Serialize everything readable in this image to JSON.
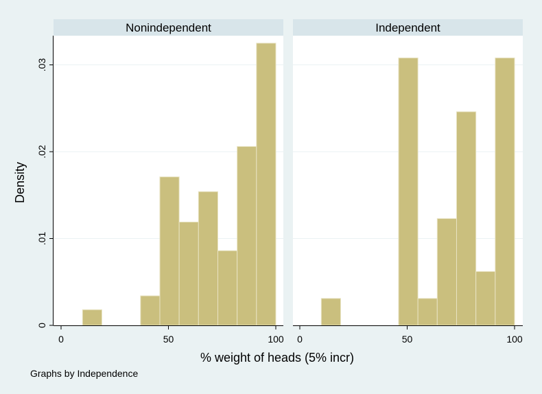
{
  "chart_data": {
    "type": "bar",
    "subtype": "histogram",
    "ylabel": "Density",
    "xlabel": "% weight of heads (5% incr)",
    "note": "Graphs by Independence",
    "xlim": [
      0,
      100
    ],
    "ylim": [
      0,
      0.033
    ],
    "xticks": [
      0,
      50,
      100
    ],
    "yticks": [
      0,
      0.01,
      0.02,
      0.03
    ],
    "ytick_labels": [
      "0",
      ".01",
      ".02",
      ".03"
    ],
    "grid": true,
    "colors": {
      "bar": "#cabf7e",
      "bar_edge": "#e8e3c3",
      "strip": "#d8e5ea",
      "background": "#eaf2f3",
      "plot_bg": "#ffffff"
    },
    "panels": [
      {
        "title": "Nonindependent",
        "bins": [
          {
            "x0": 10,
            "x1": 19,
            "y": 0.0018
          },
          {
            "x0": 37,
            "x1": 46,
            "y": 0.0034
          },
          {
            "x0": 46,
            "x1": 55,
            "y": 0.0171
          },
          {
            "x0": 55,
            "x1": 64,
            "y": 0.0119
          },
          {
            "x0": 64,
            "x1": 73,
            "y": 0.0154
          },
          {
            "x0": 73,
            "x1": 82,
            "y": 0.0086
          },
          {
            "x0": 82,
            "x1": 91,
            "y": 0.0206
          },
          {
            "x0": 91,
            "x1": 100,
            "y": 0.0325
          }
        ]
      },
      {
        "title": "Independent",
        "bins": [
          {
            "x0": 10,
            "x1": 19,
            "y": 0.0031
          },
          {
            "x0": 46,
            "x1": 55,
            "y": 0.0308
          },
          {
            "x0": 55,
            "x1": 64,
            "y": 0.0031
          },
          {
            "x0": 64,
            "x1": 73,
            "y": 0.0123
          },
          {
            "x0": 73,
            "x1": 82,
            "y": 0.0246
          },
          {
            "x0": 82,
            "x1": 91,
            "y": 0.0062
          },
          {
            "x0": 91,
            "x1": 100,
            "y": 0.0308
          }
        ]
      }
    ]
  }
}
